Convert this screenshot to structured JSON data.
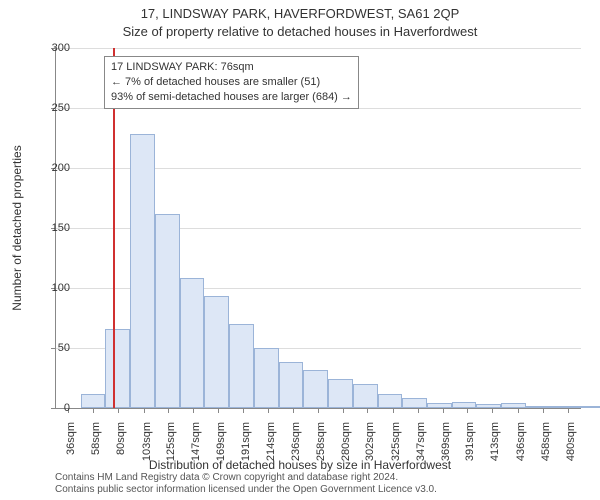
{
  "titles": {
    "main": "17, LINDSWAY PARK, HAVERFORDWEST, SA61 2QP",
    "sub": "Size of property relative to detached houses in Haverfordwest"
  },
  "axes": {
    "ylabel": "Number of detached properties",
    "xlabel": "Distribution of detached houses by size in Haverfordwest",
    "ylim": [
      0,
      300
    ],
    "yticks": [
      0,
      50,
      100,
      150,
      200,
      250,
      300
    ],
    "xlim_domain": [
      25,
      492
    ],
    "xticks": [
      36,
      58,
      80,
      103,
      125,
      147,
      169,
      191,
      214,
      236,
      258,
      280,
      302,
      325,
      347,
      369,
      391,
      413,
      436,
      458,
      480
    ],
    "xtick_suffix": "sqm"
  },
  "histogram_chart": {
    "type": "histogram",
    "bin_width_domain": 22,
    "bin_start_domain": 25,
    "bar_fill": "#dde7f6",
    "bar_stroke": "#9bb4d8",
    "background_color": "#ffffff",
    "grid_color": "#dddddd",
    "values": [
      0,
      12,
      66,
      228,
      162,
      108,
      93,
      70,
      50,
      38,
      32,
      24,
      20,
      12,
      8,
      4,
      5,
      3,
      4,
      2,
      2,
      2
    ]
  },
  "marker": {
    "x_domain": 76,
    "color": "#d03030"
  },
  "info_box": {
    "line1": "17 LINDSWAY PARK: 76sqm",
    "line2": "← 7% of detached houses are smaller (51)",
    "line3": "93% of semi-detached houses are larger (684) →"
  },
  "footer": {
    "line1": "Contains HM Land Registry data © Crown copyright and database right 2024.",
    "line2": "Contains public sector information licensed under the Open Government Licence v3.0."
  }
}
